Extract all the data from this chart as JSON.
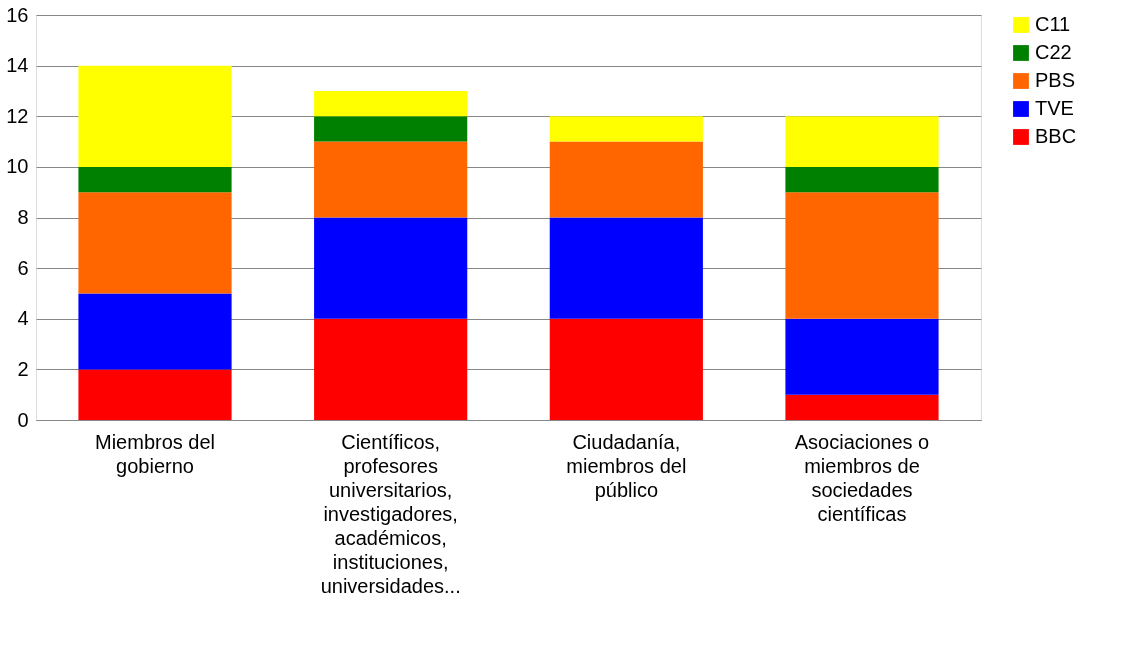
{
  "chart_data": {
    "type": "bar",
    "stacked": true,
    "categories": [
      "Miembros del\ngobierno",
      "Científicos,\nprofesores\nuniversitarios,\ninvestigadores,\nacadémicos,\ninstituciones,\nuniversidades...",
      "Ciudadanía,\nmiembros del\npúblico",
      "Asociaciones o\nmiembros de\nsociedades\ncientíficas"
    ],
    "series": [
      {
        "name": "BBC",
        "color": "#ff0000",
        "values": [
          2,
          4,
          4,
          1
        ]
      },
      {
        "name": "TVE",
        "color": "#0000ff",
        "values": [
          3,
          4,
          4,
          3
        ]
      },
      {
        "name": "PBS",
        "color": "#ff6600",
        "values": [
          4,
          3,
          3,
          5
        ]
      },
      {
        "name": "C22",
        "color": "#008000",
        "values": [
          1,
          1,
          0,
          1
        ]
      },
      {
        "name": "C11",
        "color": "#ffff00",
        "values": [
          4,
          1,
          1,
          2
        ]
      }
    ],
    "ylim": [
      0,
      16
    ],
    "yticks": [
      0,
      2,
      4,
      6,
      8,
      10,
      12,
      14,
      16
    ],
    "grid": "y",
    "legend": "right"
  }
}
